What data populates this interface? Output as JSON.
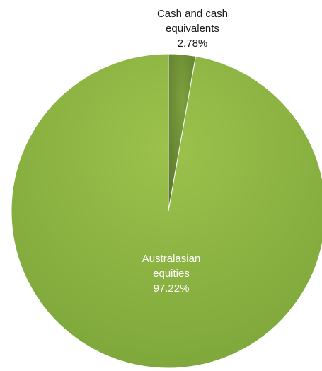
{
  "chart_data": {
    "type": "pie",
    "slices": [
      {
        "label_lines": [
          "Cash and cash",
          "equivalents",
          "2.78%"
        ],
        "category": "Cash and cash equivalents",
        "value": 2.78,
        "color": "#6e8f37",
        "label_color": "#1a1a1a"
      },
      {
        "label_lines": [
          "Australasian",
          "equities",
          "97.22%"
        ],
        "category": "Australasian equities",
        "value": 97.22,
        "color": "#8fb545",
        "label_color": "#ffffff"
      }
    ]
  }
}
